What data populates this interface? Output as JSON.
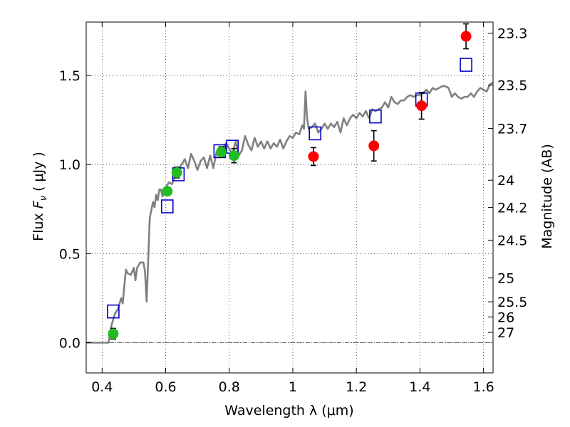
{
  "chart_data": {
    "type": "scatter",
    "title": "",
    "xlabel": "Wavelength  λ (μm)",
    "ylabel": "Flux  F_ν  ( μJy )",
    "ylabel_parts": {
      "prefix": "Flux  ",
      "symbol": "F",
      "subscript": "ν",
      "suffix": "  ( μJy )"
    },
    "y2label": "Magnitude (AB)",
    "xlim": [
      0.35,
      1.63
    ],
    "ylim": [
      -0.17,
      1.8
    ],
    "grid": true,
    "x_ticks": [
      {
        "value": 0.4,
        "label": "0.4"
      },
      {
        "value": 0.6,
        "label": "0.6"
      },
      {
        "value": 0.8,
        "label": "0.8"
      },
      {
        "value": 1.0,
        "label": "1"
      },
      {
        "value": 1.2,
        "label": "1.2"
      },
      {
        "value": 1.4,
        "label": "1.4"
      },
      {
        "value": 1.6,
        "label": "1.6"
      }
    ],
    "y_ticks": [
      {
        "value": 0.0,
        "label": "0.0"
      },
      {
        "value": 0.5,
        "label": "0.5"
      },
      {
        "value": 1.0,
        "label": "1.0"
      },
      {
        "value": 1.5,
        "label": "1.5"
      }
    ],
    "magnitude_ticks": [
      {
        "mag": 23.3,
        "label": "23.3"
      },
      {
        "mag": 23.5,
        "label": "23.5"
      },
      {
        "mag": 23.7,
        "label": "23.7"
      },
      {
        "mag": 24.0,
        "label": "24"
      },
      {
        "mag": 24.2,
        "label": "24.2"
      },
      {
        "mag": 24.5,
        "label": "24.5"
      },
      {
        "mag": 25.0,
        "label": "25"
      },
      {
        "mag": 25.5,
        "label": "25.5"
      },
      {
        "mag": 26.0,
        "label": "26"
      },
      {
        "mag": 27.0,
        "label": "27"
      }
    ],
    "colors": {
      "template": "#808080",
      "green_points": "#22bb22",
      "red_points": "#ff0000",
      "model_squares": "#0000cc",
      "error_bars": "#000000",
      "zero_line": "#555555"
    },
    "series": [
      {
        "type": "line",
        "points": [
          [
            0.35,
            0.0
          ],
          [
            0.4,
            0.0
          ],
          [
            0.42,
            0.0
          ],
          [
            0.43,
            0.1
          ],
          [
            0.44,
            0.16
          ],
          [
            0.45,
            0.19
          ],
          [
            0.46,
            0.25
          ],
          [
            0.465,
            0.22
          ],
          [
            0.47,
            0.32
          ],
          [
            0.475,
            0.41
          ],
          [
            0.48,
            0.39
          ],
          [
            0.49,
            0.38
          ],
          [
            0.5,
            0.42
          ],
          [
            0.505,
            0.35
          ],
          [
            0.51,
            0.42
          ],
          [
            0.52,
            0.45
          ],
          [
            0.53,
            0.45
          ],
          [
            0.535,
            0.4
          ],
          [
            0.54,
            0.23
          ],
          [
            0.55,
            0.7
          ],
          [
            0.56,
            0.79
          ],
          [
            0.565,
            0.76
          ],
          [
            0.57,
            0.83
          ],
          [
            0.575,
            0.8
          ],
          [
            0.58,
            0.86
          ],
          [
            0.585,
            0.86
          ],
          [
            0.59,
            0.82
          ],
          [
            0.6,
            0.87
          ],
          [
            0.61,
            0.9
          ],
          [
            0.62,
            0.89
          ],
          [
            0.63,
            0.94
          ],
          [
            0.64,
            0.97
          ],
          [
            0.65,
            1.0
          ],
          [
            0.66,
            1.03
          ],
          [
            0.67,
            0.98
          ],
          [
            0.68,
            1.06
          ],
          [
            0.69,
            1.02
          ],
          [
            0.7,
            0.97
          ],
          [
            0.71,
            1.02
          ],
          [
            0.72,
            1.04
          ],
          [
            0.73,
            0.98
          ],
          [
            0.74,
            1.05
          ],
          [
            0.75,
            0.98
          ],
          [
            0.76,
            1.07
          ],
          [
            0.77,
            1.05
          ],
          [
            0.78,
            1.09
          ],
          [
            0.79,
            1.12
          ],
          [
            0.8,
            1.09
          ],
          [
            0.81,
            1.06
          ],
          [
            0.82,
            1.13
          ],
          [
            0.83,
            1.05
          ],
          [
            0.84,
            1.08
          ],
          [
            0.85,
            1.16
          ],
          [
            0.86,
            1.11
          ],
          [
            0.87,
            1.08
          ],
          [
            0.88,
            1.15
          ],
          [
            0.89,
            1.1
          ],
          [
            0.9,
            1.13
          ],
          [
            0.91,
            1.09
          ],
          [
            0.92,
            1.13
          ],
          [
            0.93,
            1.09
          ],
          [
            0.94,
            1.12
          ],
          [
            0.95,
            1.1
          ],
          [
            0.96,
            1.14
          ],
          [
            0.97,
            1.09
          ],
          [
            0.98,
            1.13
          ],
          [
            0.99,
            1.16
          ],
          [
            1.0,
            1.15
          ],
          [
            1.01,
            1.18
          ],
          [
            1.02,
            1.17
          ],
          [
            1.03,
            1.22
          ],
          [
            1.035,
            1.2
          ],
          [
            1.04,
            1.41
          ],
          [
            1.045,
            1.26
          ],
          [
            1.05,
            1.2
          ],
          [
            1.06,
            1.21
          ],
          [
            1.07,
            1.23
          ],
          [
            1.08,
            1.18
          ],
          [
            1.09,
            1.2
          ],
          [
            1.1,
            1.23
          ],
          [
            1.11,
            1.2
          ],
          [
            1.12,
            1.23
          ],
          [
            1.13,
            1.21
          ],
          [
            1.14,
            1.24
          ],
          [
            1.15,
            1.18
          ],
          [
            1.16,
            1.26
          ],
          [
            1.17,
            1.22
          ],
          [
            1.18,
            1.26
          ],
          [
            1.19,
            1.28
          ],
          [
            1.2,
            1.26
          ],
          [
            1.21,
            1.29
          ],
          [
            1.22,
            1.27
          ],
          [
            1.23,
            1.3
          ],
          [
            1.24,
            1.26
          ],
          [
            1.25,
            1.31
          ],
          [
            1.26,
            1.3
          ],
          [
            1.27,
            1.31
          ],
          [
            1.28,
            1.32
          ],
          [
            1.29,
            1.35
          ],
          [
            1.3,
            1.32
          ],
          [
            1.31,
            1.38
          ],
          [
            1.32,
            1.35
          ],
          [
            1.33,
            1.34
          ],
          [
            1.34,
            1.36
          ],
          [
            1.35,
            1.36
          ],
          [
            1.36,
            1.38
          ],
          [
            1.37,
            1.39
          ],
          [
            1.38,
            1.38
          ],
          [
            1.39,
            1.39
          ],
          [
            1.4,
            1.39
          ],
          [
            1.41,
            1.4
          ],
          [
            1.42,
            1.42
          ],
          [
            1.43,
            1.4
          ],
          [
            1.44,
            1.43
          ],
          [
            1.45,
            1.42
          ],
          [
            1.46,
            1.43
          ],
          [
            1.47,
            1.44
          ],
          [
            1.48,
            1.44
          ],
          [
            1.49,
            1.43
          ],
          [
            1.5,
            1.38
          ],
          [
            1.51,
            1.4
          ],
          [
            1.52,
            1.38
          ],
          [
            1.53,
            1.37
          ],
          [
            1.54,
            1.38
          ],
          [
            1.55,
            1.38
          ],
          [
            1.56,
            1.4
          ],
          [
            1.57,
            1.38
          ],
          [
            1.58,
            1.41
          ],
          [
            1.59,
            1.43
          ],
          [
            1.6,
            1.42
          ],
          [
            1.61,
            1.41
          ],
          [
            1.62,
            1.45
          ],
          [
            1.63,
            1.46
          ]
        ]
      },
      {
        "type": "scatter",
        "points": [
          {
            "x": 0.435,
            "y": 0.05,
            "err": 0.03
          },
          {
            "x": 0.605,
            "y": 0.85,
            "err": 0.02
          },
          {
            "x": 0.635,
            "y": 0.955,
            "err": 0.03
          },
          {
            "x": 0.775,
            "y": 1.07,
            "err": 0.03
          },
          {
            "x": 0.815,
            "y": 1.05,
            "err": 0.04
          }
        ]
      },
      {
        "type": "scatter",
        "points": [
          {
            "x": 1.065,
            "y": 1.045,
            "err": 0.05
          },
          {
            "x": 1.255,
            "y": 1.105,
            "err": 0.085
          },
          {
            "x": 1.405,
            "y": 1.33,
            "err": 0.075
          },
          {
            "x": 1.545,
            "y": 1.72,
            "err": 0.07
          }
        ]
      },
      {
        "type": "scatter",
        "points": [
          {
            "x": 0.435,
            "y": 0.175
          },
          {
            "x": 0.605,
            "y": 0.765
          },
          {
            "x": 0.64,
            "y": 0.945
          },
          {
            "x": 0.77,
            "y": 1.075
          },
          {
            "x": 0.81,
            "y": 1.1
          },
          {
            "x": 1.07,
            "y": 1.175
          },
          {
            "x": 1.26,
            "y": 1.27
          },
          {
            "x": 1.405,
            "y": 1.365
          },
          {
            "x": 1.545,
            "y": 1.56
          }
        ]
      }
    ]
  }
}
